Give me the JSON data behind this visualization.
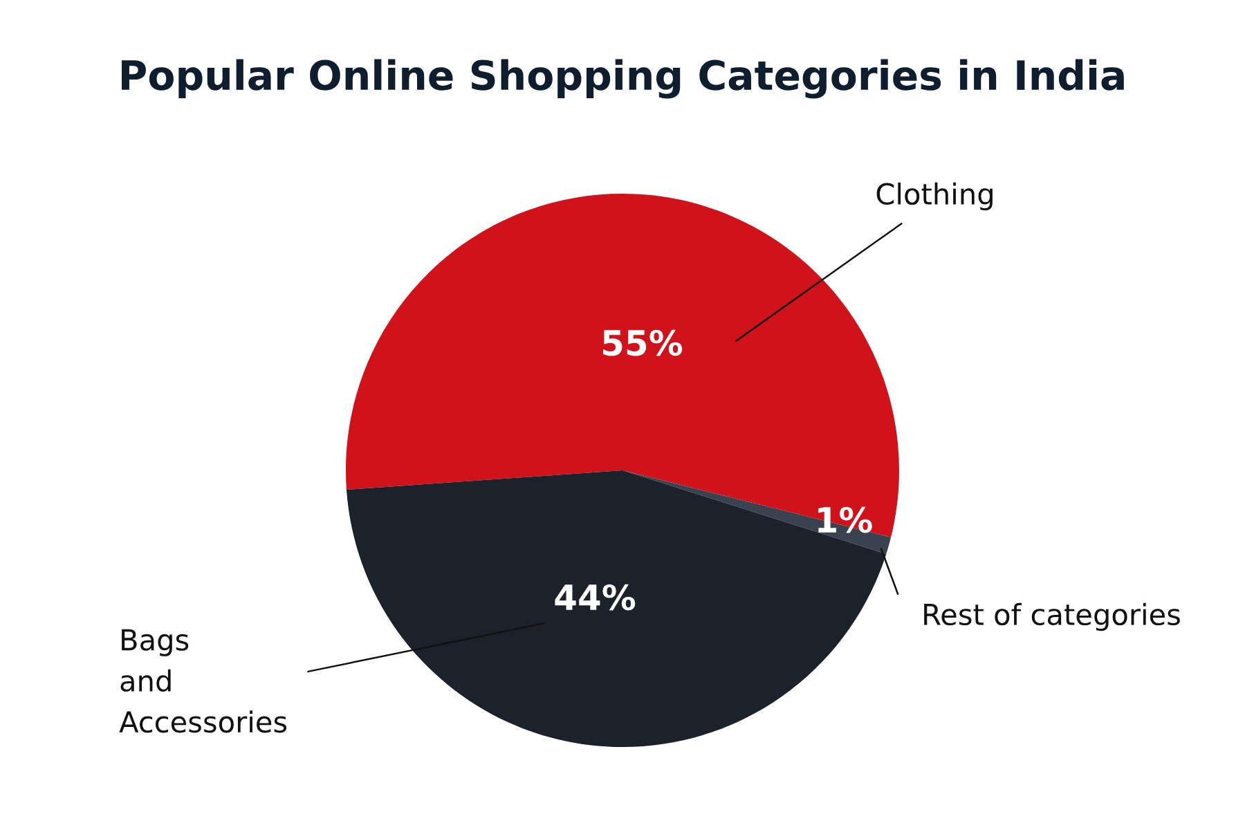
{
  "chart_data": {
    "type": "pie",
    "title": "Popular Online Shopping Categories in India",
    "categories": [
      "Clothing",
      "Rest of categories",
      "Bags\nand\nAccessories"
    ],
    "values": [
      55,
      1,
      44
    ],
    "colors": [
      "#d0121a",
      "#3a4250",
      "#1b222c"
    ],
    "value_labels": [
      "55%",
      "1%",
      "44%"
    ],
    "legend": false
  }
}
